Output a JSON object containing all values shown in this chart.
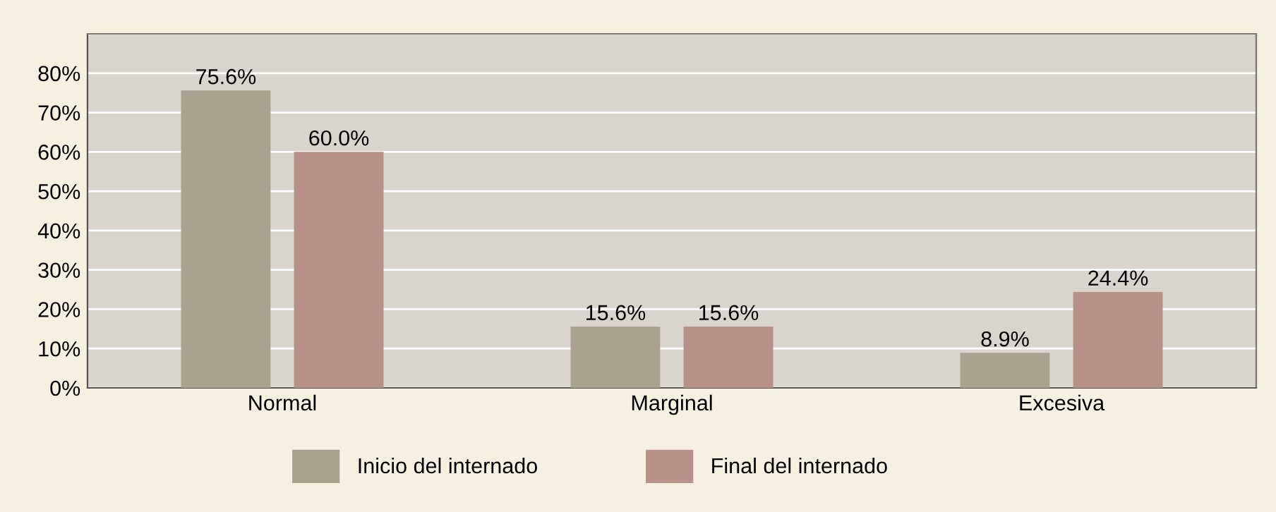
{
  "chart_data": {
    "type": "bar",
    "categories": [
      "Normal",
      "Marginal",
      "Excesiva"
    ],
    "series": [
      {
        "name": "Inicio del internado",
        "color": "#a9a291",
        "values": [
          75.6,
          15.6,
          8.9
        ],
        "value_labels": [
          "75.6%",
          "15.6%",
          "8.9%"
        ]
      },
      {
        "name": "Final del internado",
        "color": "#b8918b",
        "values": [
          60.0,
          15.6,
          24.4
        ],
        "value_labels": [
          "60.0%",
          "15.6%",
          "24.4%"
        ]
      }
    ],
    "ylim": [
      0,
      90
    ],
    "yticks": [
      {
        "value": 0,
        "label": "0%"
      },
      {
        "value": 10,
        "label": "10%"
      },
      {
        "value": 20,
        "label": "20%"
      },
      {
        "value": 30,
        "label": "30%"
      },
      {
        "value": 40,
        "label": "40%"
      },
      {
        "value": 50,
        "label": "50%"
      },
      {
        "value": 60,
        "label": "60%"
      },
      {
        "value": 70,
        "label": "70%"
      },
      {
        "value": 80,
        "label": "80%"
      },
      {
        "value": 90,
        "label": null
      }
    ],
    "grid": "y",
    "legend": "bottom"
  }
}
